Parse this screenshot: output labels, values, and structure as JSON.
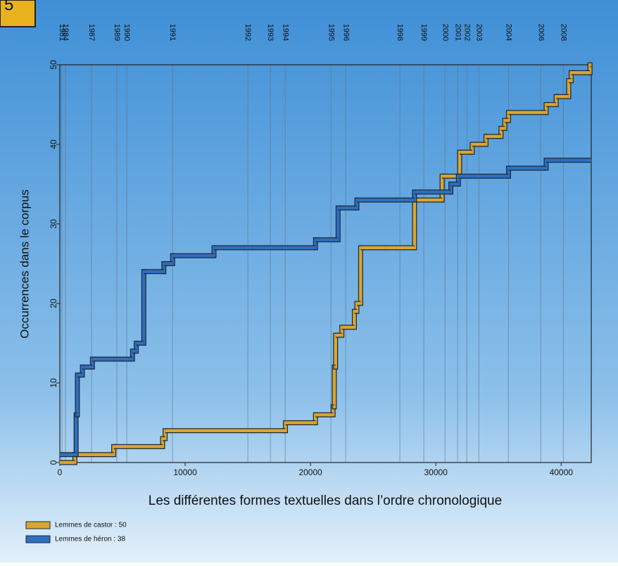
{
  "chart_data": {
    "type": "step",
    "badge": "5",
    "x_label": "Les différentes formes textuelles dans l’ordre chronologique",
    "y_label": "Occurrences dans le corpus",
    "xlim": [
      0,
      42400
    ],
    "xticks": [
      0,
      10000,
      20000,
      30000,
      40000
    ],
    "ylim": [
      0,
      50
    ],
    "yticks": [
      0,
      10,
      20,
      30,
      40,
      50
    ],
    "year_markers": [
      {
        "x": 170,
        "label": "1981"
      },
      {
        "x": 450,
        "label": "1984"
      },
      {
        "x": 2530,
        "label": "1987"
      },
      {
        "x": 4550,
        "label": "1989"
      },
      {
        "x": 5340,
        "label": "1990"
      },
      {
        "x": 8990,
        "label": "1991"
      },
      {
        "x": 15000,
        "label": "1992"
      },
      {
        "x": 16800,
        "label": "1993"
      },
      {
        "x": 17980,
        "label": "1994"
      },
      {
        "x": 21630,
        "label": "1995"
      },
      {
        "x": 22810,
        "label": "1996"
      },
      {
        "x": 27130,
        "label": "1998"
      },
      {
        "x": 29040,
        "label": "1999"
      },
      {
        "x": 30730,
        "label": "2000"
      },
      {
        "x": 31740,
        "label": "2001"
      },
      {
        "x": 32470,
        "label": "2002"
      },
      {
        "x": 33430,
        "label": "2003"
      },
      {
        "x": 35790,
        "label": "2004"
      },
      {
        "x": 38370,
        "label": "2006"
      },
      {
        "x": 40170,
        "label": "2008"
      }
    ],
    "series": [
      {
        "name": "Lemmes de castor : 50",
        "color": "#d9a62e",
        "x": [
          0,
          1200,
          4300,
          8200,
          8400,
          18000,
          20400,
          21800,
          21900,
          22000,
          22500,
          23500,
          23700,
          24000,
          26000,
          28300,
          30500,
          31900,
          32900,
          34000,
          35200,
          35500,
          35800,
          38800,
          39600,
          40600,
          40800,
          42300
        ],
        "values": [
          0,
          1,
          2,
          3,
          4,
          5,
          6,
          7,
          12,
          16,
          17,
          19,
          20,
          27,
          27,
          33,
          36,
          39,
          40,
          41,
          42,
          43,
          44,
          45,
          46,
          48,
          49,
          50
        ]
      },
      {
        "name": "Lemmes de héron : 38",
        "color": "#2e6fbe",
        "x": [
          0,
          1300,
          1400,
          1800,
          2600,
          5800,
          6100,
          6700,
          8300,
          9000,
          12300,
          20400,
          22200,
          23700,
          28300,
          31200,
          31800,
          35800,
          38800
        ],
        "values": [
          1,
          6,
          11,
          12,
          13,
          14,
          15,
          24,
          25,
          26,
          27,
          28,
          32,
          33,
          34,
          35,
          36,
          37,
          38
        ]
      }
    ]
  }
}
